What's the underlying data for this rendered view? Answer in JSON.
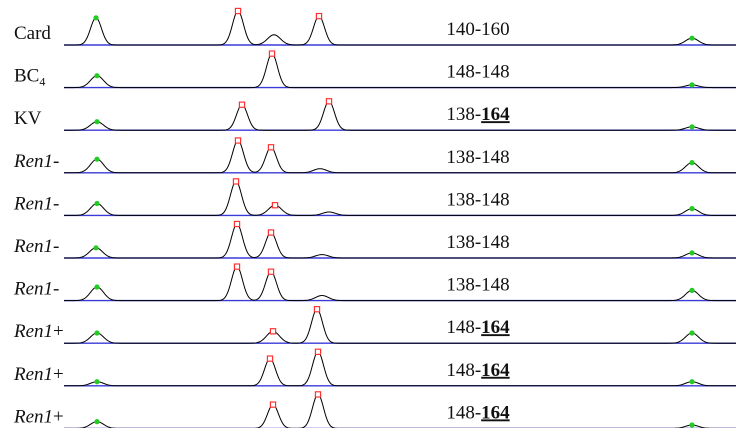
{
  "chart_data": {
    "type": "line",
    "title": "",
    "xlabel": "",
    "ylabel": "",
    "grid": false,
    "legend": "none",
    "colors": {
      "trace": "#000000",
      "baseline": "#3a3ad8",
      "size_marker": "#22cc22",
      "called_peak_marker": "#ff3333"
    },
    "lanes": [
      {
        "label": "Card",
        "label_sub": "",
        "label_suffix": "",
        "italic": false,
        "alleles": {
          "first": "140",
          "sep": "-",
          "second": "160",
          "second_emph": false
        },
        "peaks": [
          {
            "pos": 96,
            "height": 0.8,
            "marker": "size"
          },
          {
            "pos": 238,
            "height": 1.0,
            "marker": "called"
          },
          {
            "pos": 274,
            "height": 0.3,
            "marker": "none"
          },
          {
            "pos": 319,
            "height": 0.85,
            "marker": "called"
          },
          {
            "pos": 692,
            "height": 0.2,
            "marker": "size"
          }
        ]
      },
      {
        "label": "BC",
        "label_sub": "4",
        "label_suffix": "",
        "italic": false,
        "alleles": {
          "first": "148",
          "sep": "-",
          "second": "148",
          "second_emph": false
        },
        "peaks": [
          {
            "pos": 97,
            "height": 0.35,
            "marker": "size"
          },
          {
            "pos": 272,
            "height": 1.0,
            "marker": "called"
          },
          {
            "pos": 692,
            "height": 0.08,
            "marker": "size"
          }
        ]
      },
      {
        "label": "KV",
        "label_sub": "",
        "label_suffix": "",
        "italic": false,
        "alleles": {
          "first": "138",
          "sep": "-",
          "second": "164",
          "second_emph": true
        },
        "peaks": [
          {
            "pos": 97,
            "height": 0.25,
            "marker": "size"
          },
          {
            "pos": 242,
            "height": 0.75,
            "marker": "called"
          },
          {
            "pos": 329,
            "height": 0.85,
            "marker": "called"
          },
          {
            "pos": 692,
            "height": 0.1,
            "marker": "size"
          }
        ]
      },
      {
        "label": "Ren1",
        "label_sub": "",
        "label_suffix": "-",
        "italic": true,
        "alleles": {
          "first": "138",
          "sep": "-",
          "second": "148",
          "second_emph": false
        },
        "peaks": [
          {
            "pos": 97,
            "height": 0.4,
            "marker": "size"
          },
          {
            "pos": 238,
            "height": 0.95,
            "marker": "called"
          },
          {
            "pos": 271,
            "height": 0.75,
            "marker": "called"
          },
          {
            "pos": 320,
            "height": 0.12,
            "marker": "none"
          },
          {
            "pos": 692,
            "height": 0.3,
            "marker": "size"
          }
        ]
      },
      {
        "label": "Ren1",
        "label_sub": "",
        "label_suffix": "-",
        "italic": true,
        "alleles": {
          "first": "138",
          "sep": "-",
          "second": "148",
          "second_emph": false
        },
        "peaks": [
          {
            "pos": 97,
            "height": 0.35,
            "marker": "size"
          },
          {
            "pos": 236,
            "height": 1.0,
            "marker": "called"
          },
          {
            "pos": 275,
            "height": 0.3,
            "marker": "called"
          },
          {
            "pos": 329,
            "height": 0.1,
            "marker": "none"
          },
          {
            "pos": 692,
            "height": 0.2,
            "marker": "size"
          }
        ]
      },
      {
        "label": "Ren1",
        "label_sub": "",
        "label_suffix": "-",
        "italic": true,
        "alleles": {
          "first": "138",
          "sep": "-",
          "second": "148",
          "second_emph": false
        },
        "peaks": [
          {
            "pos": 96,
            "height": 0.3,
            "marker": "size"
          },
          {
            "pos": 237,
            "height": 1.0,
            "marker": "called"
          },
          {
            "pos": 271,
            "height": 0.75,
            "marker": "called"
          },
          {
            "pos": 322,
            "height": 0.1,
            "marker": "none"
          },
          {
            "pos": 692,
            "height": 0.15,
            "marker": "size"
          }
        ]
      },
      {
        "label": "Ren1",
        "label_sub": "",
        "label_suffix": "-",
        "italic": true,
        "alleles": {
          "first": "138",
          "sep": "-",
          "second": "148",
          "second_emph": false
        },
        "peaks": [
          {
            "pos": 97,
            "height": 0.4,
            "marker": "size"
          },
          {
            "pos": 237,
            "height": 1.0,
            "marker": "called"
          },
          {
            "pos": 271,
            "height": 0.85,
            "marker": "called"
          },
          {
            "pos": 322,
            "height": 0.15,
            "marker": "none"
          },
          {
            "pos": 692,
            "height": 0.3,
            "marker": "size"
          }
        ]
      },
      {
        "label": "Ren1",
        "label_sub": "",
        "label_suffix": "+",
        "italic": true,
        "alleles": {
          "first": "148",
          "sep": "-",
          "second": "164",
          "second_emph": true
        },
        "peaks": [
          {
            "pos": 97,
            "height": 0.3,
            "marker": "size"
          },
          {
            "pos": 273,
            "height": 0.35,
            "marker": "called"
          },
          {
            "pos": 317,
            "height": 1.0,
            "marker": "called"
          },
          {
            "pos": 692,
            "height": 0.3,
            "marker": "size"
          }
        ]
      },
      {
        "label": "Ren1",
        "label_sub": "",
        "label_suffix": "+",
        "italic": true,
        "alleles": {
          "first": "148",
          "sep": "-",
          "second": "164",
          "second_emph": true
        },
        "peaks": [
          {
            "pos": 97,
            "height": 0.12,
            "marker": "size"
          },
          {
            "pos": 270,
            "height": 0.8,
            "marker": "called"
          },
          {
            "pos": 318,
            "height": 1.0,
            "marker": "called"
          },
          {
            "pos": 692,
            "height": 0.12,
            "marker": "size"
          }
        ]
      },
      {
        "label": "Ren1",
        "label_sub": "",
        "label_suffix": "+",
        "italic": true,
        "alleles": {
          "first": "148",
          "sep": "-",
          "second": "164",
          "second_emph": true
        },
        "peaks": [
          {
            "pos": 97,
            "height": 0.2,
            "marker": "size"
          },
          {
            "pos": 273,
            "height": 0.7,
            "marker": "called"
          },
          {
            "pos": 318,
            "height": 1.0,
            "marker": "called"
          },
          {
            "pos": 692,
            "height": 0.1,
            "marker": "size"
          }
        ]
      }
    ]
  }
}
